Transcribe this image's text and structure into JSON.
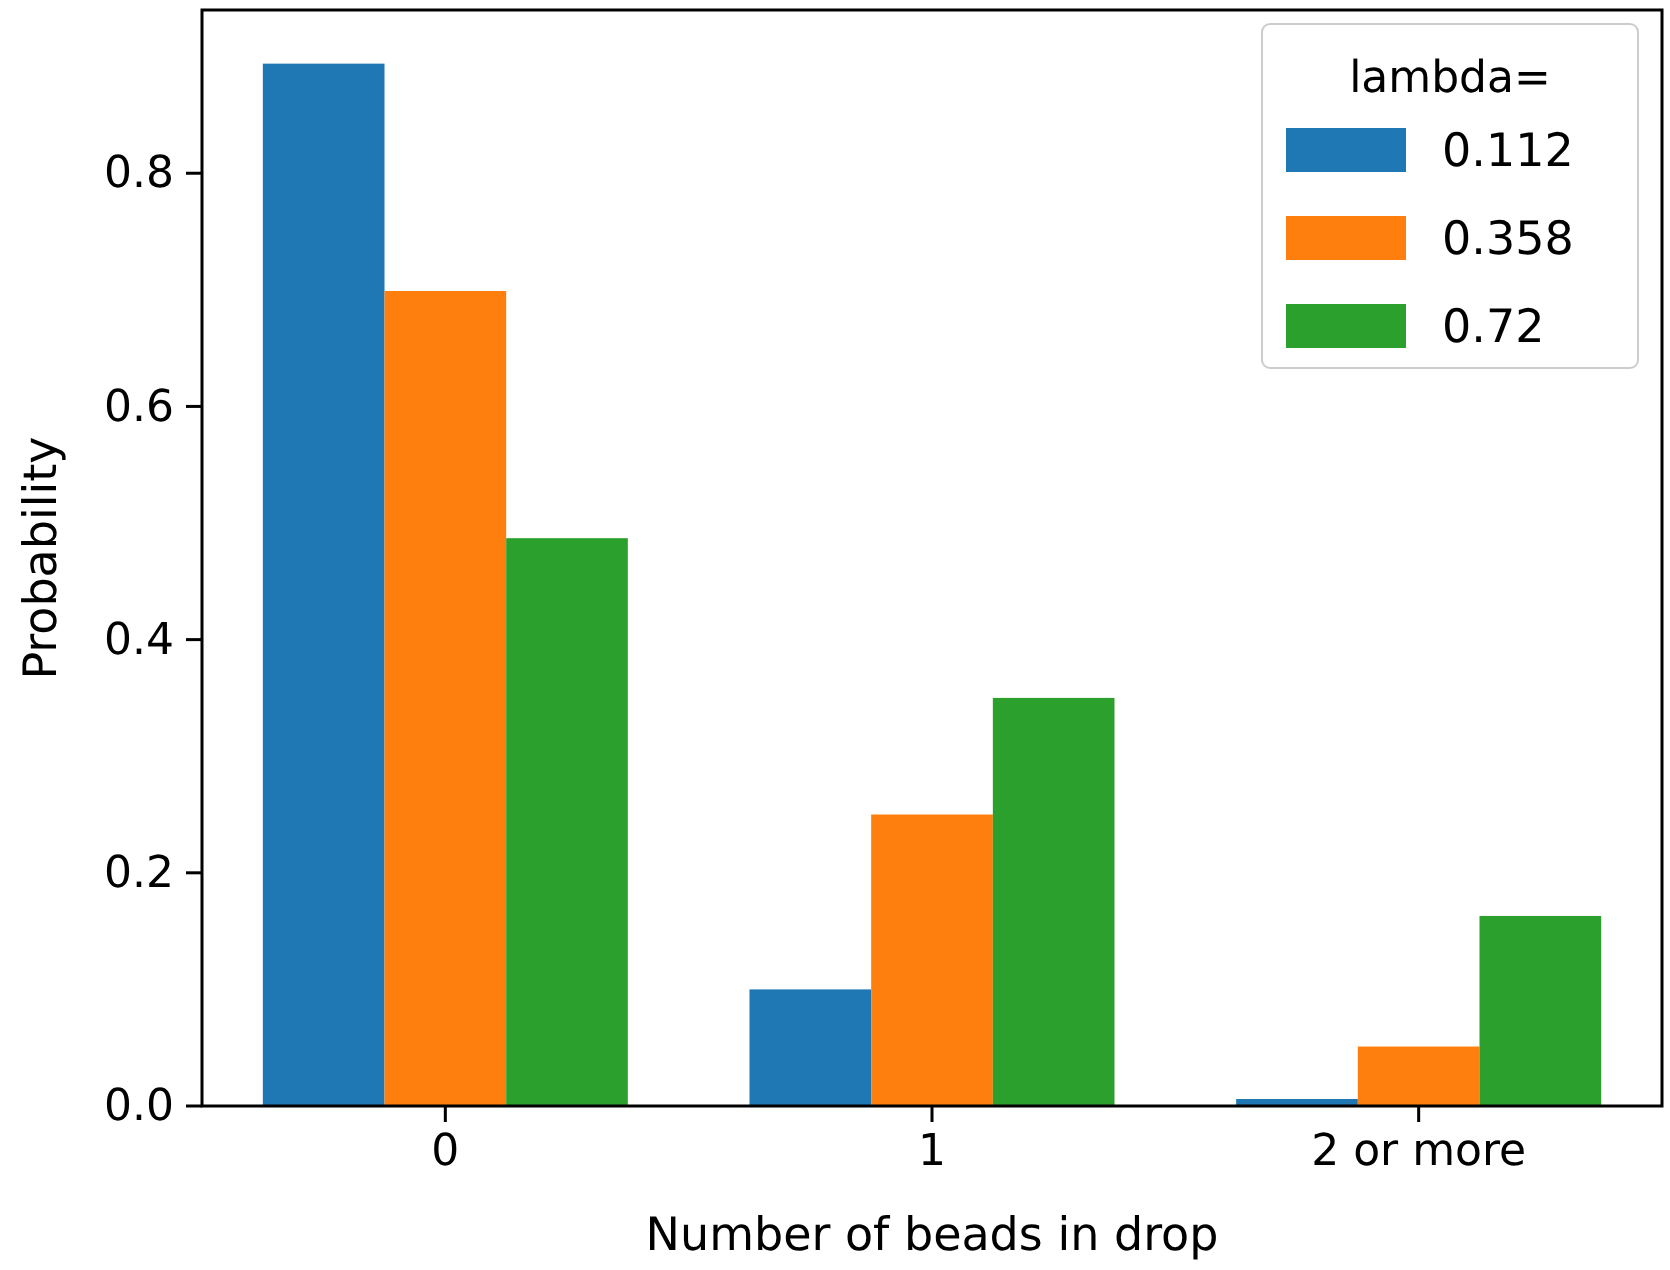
{
  "chart_data": {
    "type": "bar",
    "xlabel": "Number of beads in drop",
    "ylabel": "Probability",
    "legend_title": "lambda=",
    "categories": [
      "0",
      "1",
      "2 or more"
    ],
    "series": [
      {
        "name": "0.112",
        "color": "#1f77b4",
        "values": [
          0.894,
          0.1,
          0.006
        ]
      },
      {
        "name": "0.358",
        "color": "#ff7f0e",
        "values": [
          0.699,
          0.25,
          0.051
        ]
      },
      {
        "name": "0.72",
        "color": "#2ca02c",
        "values": [
          0.487,
          0.35,
          0.163
        ]
      }
    ],
    "ylim": [
      0,
      0.94
    ],
    "yticks": [
      {
        "value": 0,
        "label": "0.0"
      },
      0.2,
      0.4,
      0.6,
      0.8
    ],
    "grid": false,
    "legend": "top right"
  }
}
